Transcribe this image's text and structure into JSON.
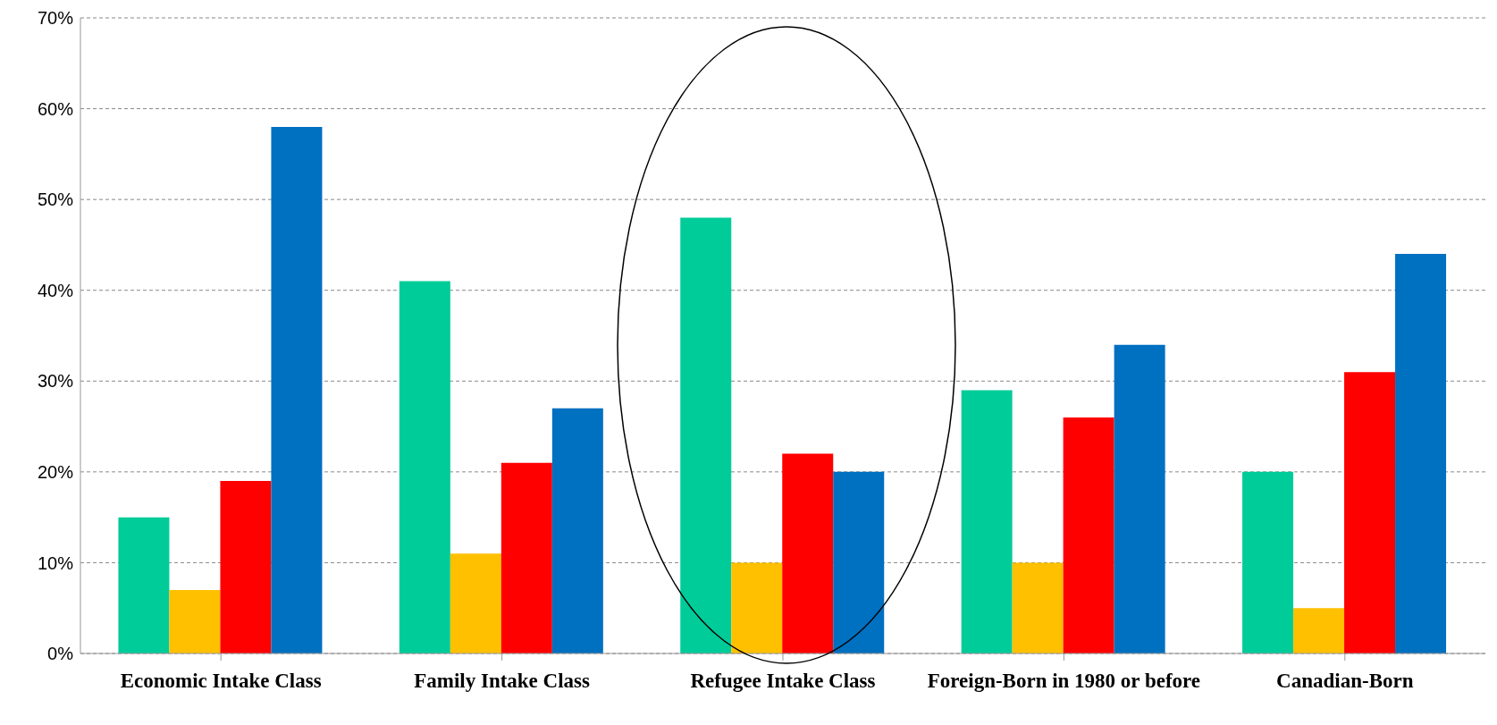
{
  "chart_data": {
    "type": "bar",
    "categories": [
      "Economic Intake Class",
      "Family Intake Class",
      "Refugee Intake Class",
      "Foreign-Born in 1980 or before",
      "Canadian-Born"
    ],
    "series": [
      {
        "color": "#00cc99",
        "values": [
          15,
          41,
          48,
          29,
          20
        ]
      },
      {
        "color": "#ffc000",
        "values": [
          7,
          11,
          10,
          10,
          5
        ]
      },
      {
        "color": "#ff0000",
        "values": [
          19,
          21,
          22,
          26,
          31
        ]
      },
      {
        "color": "#0070c0",
        "values": [
          58,
          27,
          20,
          34,
          44
        ]
      }
    ],
    "ylim": [
      0,
      70
    ],
    "yticks": [
      {
        "value": 0,
        "label": "0%"
      },
      {
        "value": 10,
        "label": "10%"
      },
      {
        "value": 20,
        "label": "20%"
      },
      {
        "value": 30,
        "label": "30%"
      },
      {
        "value": 40,
        "label": "40%"
      },
      {
        "value": 50,
        "label": "50%"
      },
      {
        "value": 60,
        "label": "60%"
      },
      {
        "value": 70,
        "label": "70%"
      }
    ],
    "grid": "y",
    "legend": false
  }
}
